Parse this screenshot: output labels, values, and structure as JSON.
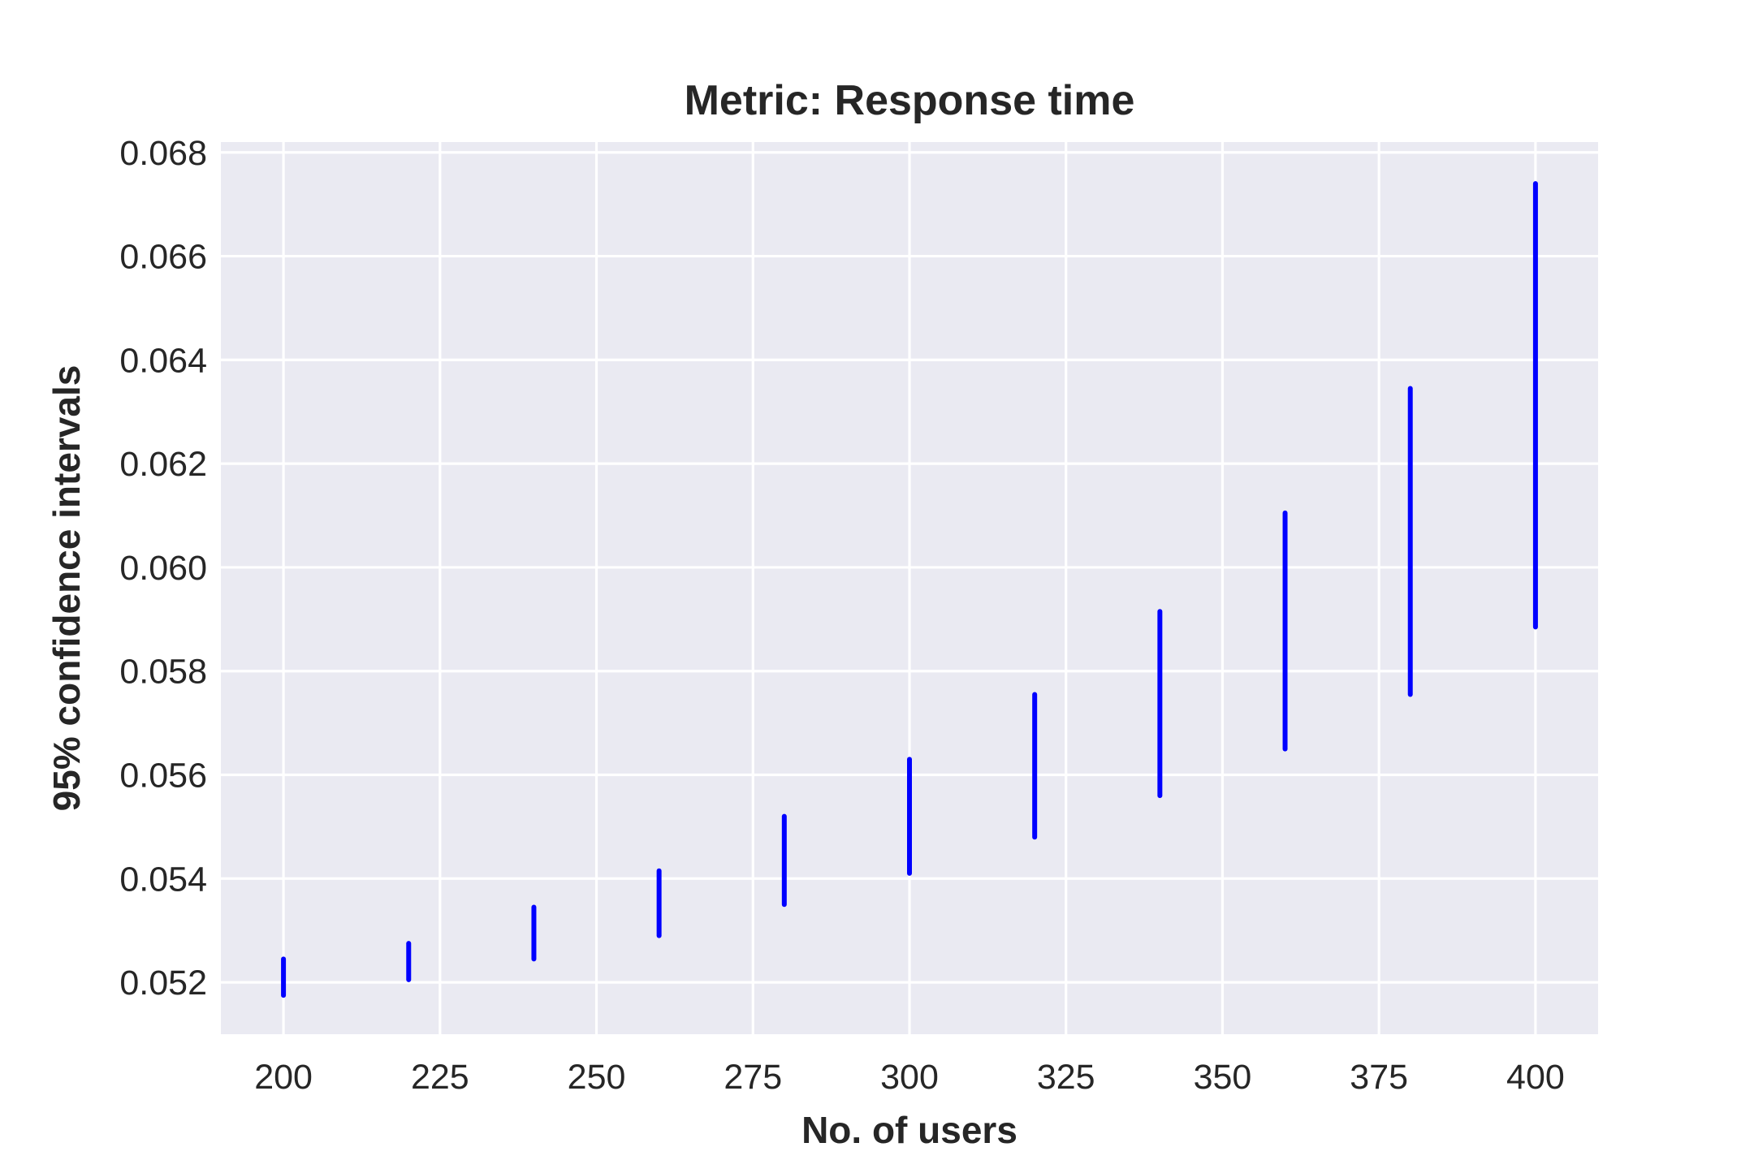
{
  "chart_data": {
    "type": "errorbar",
    "title": "Metric: Response time",
    "xlabel": "No. of users",
    "ylabel": "95% confidence intervals",
    "xlim": [
      190,
      410
    ],
    "ylim": [
      0.051,
      0.0682
    ],
    "x_ticks": [
      200,
      225,
      250,
      275,
      300,
      325,
      350,
      375,
      400
    ],
    "x_tick_labels": [
      "200",
      "225",
      "250",
      "275",
      "300",
      "325",
      "350",
      "375",
      "400"
    ],
    "y_ticks": [
      0.052,
      0.054,
      0.056,
      0.058,
      0.06,
      0.062,
      0.064,
      0.066,
      0.068
    ],
    "y_tick_labels": [
      "0.052",
      "0.054",
      "0.056",
      "0.058",
      "0.060",
      "0.062",
      "0.064",
      "0.066",
      "0.068"
    ],
    "grid": true,
    "background_color": "#eaeaf2",
    "grid_color": "#ffffff",
    "series": [
      {
        "color": "#0000ff",
        "intervals": [
          {
            "x": 200,
            "low": 0.05175,
            "high": 0.05245
          },
          {
            "x": 220,
            "low": 0.05205,
            "high": 0.05275
          },
          {
            "x": 240,
            "low": 0.05245,
            "high": 0.05345
          },
          {
            "x": 260,
            "low": 0.0529,
            "high": 0.05415
          },
          {
            "x": 280,
            "low": 0.0535,
            "high": 0.0552
          },
          {
            "x": 300,
            "low": 0.0541,
            "high": 0.0563
          },
          {
            "x": 320,
            "low": 0.0548,
            "high": 0.05755
          },
          {
            "x": 340,
            "low": 0.0556,
            "high": 0.05915
          },
          {
            "x": 360,
            "low": 0.0565,
            "high": 0.06105
          },
          {
            "x": 380,
            "low": 0.05755,
            "high": 0.06345
          },
          {
            "x": 400,
            "low": 0.05885,
            "high": 0.0674
          }
        ]
      }
    ]
  }
}
